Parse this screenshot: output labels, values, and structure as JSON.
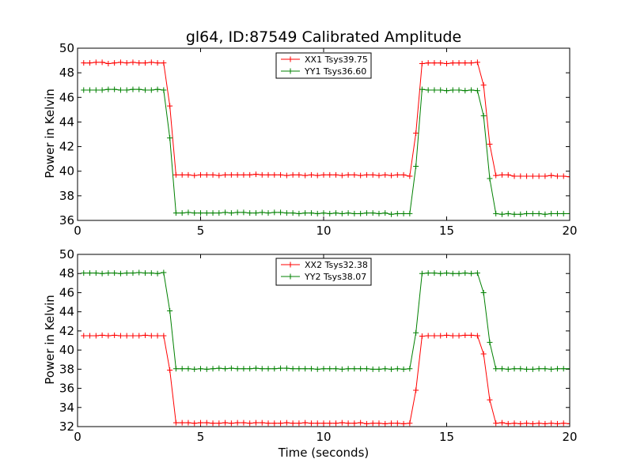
{
  "chart_data": [
    {
      "type": "line",
      "title": "gl64, ID:87549 Calibrated Amplitude",
      "xlabel": "",
      "ylabel": "Power in Kelvin",
      "xlim": [
        0,
        20
      ],
      "ylim": [
        36,
        50
      ],
      "xticks": [
        "0",
        "5",
        "10",
        "15",
        "20"
      ],
      "yticks": [
        "36",
        "38",
        "40",
        "42",
        "44",
        "46",
        "48",
        "50"
      ],
      "legend_position": "top-center",
      "x": [
        0.25,
        0.5,
        0.75,
        1.0,
        1.25,
        1.5,
        1.75,
        2.0,
        2.25,
        2.5,
        2.75,
        3.0,
        3.25,
        3.5,
        3.75,
        4.0,
        4.25,
        4.5,
        4.75,
        5.0,
        5.25,
        5.5,
        5.75,
        6.0,
        6.25,
        6.5,
        6.75,
        7.0,
        7.25,
        7.5,
        7.75,
        8.0,
        8.25,
        8.5,
        8.75,
        9.0,
        9.25,
        9.5,
        9.75,
        10.0,
        10.25,
        10.5,
        10.75,
        11.0,
        11.25,
        11.5,
        11.75,
        12.0,
        12.25,
        12.5,
        12.75,
        13.0,
        13.25,
        13.5,
        13.75,
        14.0,
        14.25,
        14.5,
        14.75,
        15.0,
        15.25,
        15.5,
        15.75,
        16.0,
        16.25,
        16.5,
        16.75,
        17.0,
        17.25,
        17.5,
        17.75,
        18.0,
        18.25,
        18.5,
        18.75,
        19.0,
        19.25,
        19.5,
        19.75,
        20.0
      ],
      "series": [
        {
          "name": "XX1 Tsys39.75",
          "color": "#ff0000",
          "values": [
            48.8,
            48.8,
            48.85,
            48.85,
            48.75,
            48.8,
            48.85,
            48.8,
            48.85,
            48.8,
            48.8,
            48.85,
            48.8,
            48.8,
            45.3,
            39.7,
            39.7,
            39.7,
            39.65,
            39.7,
            39.7,
            39.7,
            39.65,
            39.7,
            39.7,
            39.7,
            39.7,
            39.7,
            39.75,
            39.7,
            39.7,
            39.7,
            39.7,
            39.65,
            39.7,
            39.7,
            39.65,
            39.7,
            39.65,
            39.7,
            39.7,
            39.7,
            39.65,
            39.7,
            39.7,
            39.65,
            39.7,
            39.7,
            39.65,
            39.7,
            39.65,
            39.7,
            39.7,
            39.6,
            43.1,
            48.75,
            48.8,
            48.8,
            48.8,
            48.75,
            48.8,
            48.8,
            48.8,
            48.8,
            48.85,
            47.0,
            42.2,
            39.65,
            39.7,
            39.7,
            39.6,
            39.6,
            39.6,
            39.6,
            39.6,
            39.6,
            39.65,
            39.6,
            39.6,
            39.55
          ]
        },
        {
          "name": "YY1 Tsys36.60",
          "color": "#008000",
          "values": [
            46.6,
            46.6,
            46.6,
            46.6,
            46.65,
            46.65,
            46.6,
            46.6,
            46.65,
            46.65,
            46.6,
            46.6,
            46.65,
            46.6,
            42.7,
            36.6,
            36.6,
            36.65,
            36.6,
            36.6,
            36.6,
            36.6,
            36.6,
            36.65,
            36.6,
            36.65,
            36.65,
            36.6,
            36.6,
            36.65,
            36.6,
            36.65,
            36.65,
            36.6,
            36.6,
            36.55,
            36.6,
            36.6,
            36.55,
            36.6,
            36.55,
            36.6,
            36.55,
            36.6,
            36.55,
            36.55,
            36.6,
            36.6,
            36.55,
            36.6,
            36.5,
            36.55,
            36.55,
            36.55,
            40.4,
            46.65,
            46.6,
            46.6,
            46.6,
            46.55,
            46.6,
            46.6,
            46.55,
            46.6,
            46.55,
            44.5,
            39.4,
            36.55,
            36.5,
            36.55,
            36.5,
            36.5,
            36.55,
            36.55,
            36.55,
            36.5,
            36.55,
            36.55,
            36.55,
            36.55
          ]
        }
      ]
    },
    {
      "type": "line",
      "title": "",
      "xlabel": "Time (seconds)",
      "ylabel": "Power in Kelvin",
      "xlim": [
        0,
        20
      ],
      "ylim": [
        32,
        50
      ],
      "xticks": [
        "0",
        "5",
        "10",
        "15",
        "20"
      ],
      "yticks": [
        "32",
        "34",
        "36",
        "38",
        "40",
        "42",
        "44",
        "46",
        "48",
        "50"
      ],
      "legend_position": "top-center",
      "x": [
        0.25,
        0.5,
        0.75,
        1.0,
        1.25,
        1.5,
        1.75,
        2.0,
        2.25,
        2.5,
        2.75,
        3.0,
        3.25,
        3.5,
        3.75,
        4.0,
        4.25,
        4.5,
        4.75,
        5.0,
        5.25,
        5.5,
        5.75,
        6.0,
        6.25,
        6.5,
        6.75,
        7.0,
        7.25,
        7.5,
        7.75,
        8.0,
        8.25,
        8.5,
        8.75,
        9.0,
        9.25,
        9.5,
        9.75,
        10.0,
        10.25,
        10.5,
        10.75,
        11.0,
        11.25,
        11.5,
        11.75,
        12.0,
        12.25,
        12.5,
        12.75,
        13.0,
        13.25,
        13.5,
        13.75,
        14.0,
        14.25,
        14.5,
        14.75,
        15.0,
        15.25,
        15.5,
        15.75,
        16.0,
        16.25,
        16.5,
        16.75,
        17.0,
        17.25,
        17.5,
        17.75,
        18.0,
        18.25,
        18.5,
        18.75,
        19.0,
        19.25,
        19.5,
        19.75,
        20.0
      ],
      "series": [
        {
          "name": "XX2 Tsys32.38",
          "color": "#ff0000",
          "values": [
            41.5,
            41.5,
            41.5,
            41.55,
            41.5,
            41.55,
            41.5,
            41.5,
            41.5,
            41.5,
            41.55,
            41.5,
            41.5,
            41.5,
            37.9,
            32.4,
            32.4,
            32.4,
            32.35,
            32.4,
            32.4,
            32.35,
            32.35,
            32.4,
            32.35,
            32.4,
            32.4,
            32.35,
            32.4,
            32.4,
            32.35,
            32.35,
            32.35,
            32.4,
            32.35,
            32.35,
            32.4,
            32.35,
            32.35,
            32.35,
            32.35,
            32.35,
            32.4,
            32.35,
            32.35,
            32.4,
            32.3,
            32.35,
            32.35,
            32.3,
            32.35,
            32.35,
            32.3,
            32.35,
            35.8,
            41.45,
            41.5,
            41.5,
            41.5,
            41.55,
            41.5,
            41.5,
            41.55,
            41.55,
            41.5,
            39.6,
            34.8,
            32.35,
            32.4,
            32.3,
            32.35,
            32.3,
            32.35,
            32.3,
            32.35,
            32.3,
            32.35,
            32.3,
            32.35,
            32.3
          ]
        },
        {
          "name": "YY2 Tsys38.07",
          "color": "#008000",
          "values": [
            48.05,
            48.05,
            48.05,
            48.0,
            48.05,
            48.05,
            48.0,
            48.05,
            48.05,
            48.1,
            48.05,
            48.05,
            48.0,
            48.1,
            44.1,
            38.05,
            38.05,
            38.05,
            38.0,
            38.05,
            38.0,
            38.05,
            38.1,
            38.05,
            38.1,
            38.05,
            38.05,
            38.05,
            38.1,
            38.05,
            38.05,
            38.05,
            38.1,
            38.1,
            38.05,
            38.05,
            38.05,
            38.05,
            38.0,
            38.05,
            38.05,
            38.05,
            38.0,
            38.05,
            38.05,
            38.05,
            38.05,
            38.0,
            38.0,
            38.05,
            38.0,
            38.05,
            38.0,
            38.05,
            41.8,
            48.0,
            48.05,
            48.05,
            48.0,
            48.05,
            48.0,
            48.0,
            48.05,
            48.0,
            48.05,
            46.0,
            40.8,
            38.05,
            38.05,
            38.0,
            38.05,
            38.05,
            38.0,
            38.0,
            38.05,
            38.05,
            38.0,
            38.05,
            38.05,
            38.05
          ]
        }
      ]
    }
  ]
}
